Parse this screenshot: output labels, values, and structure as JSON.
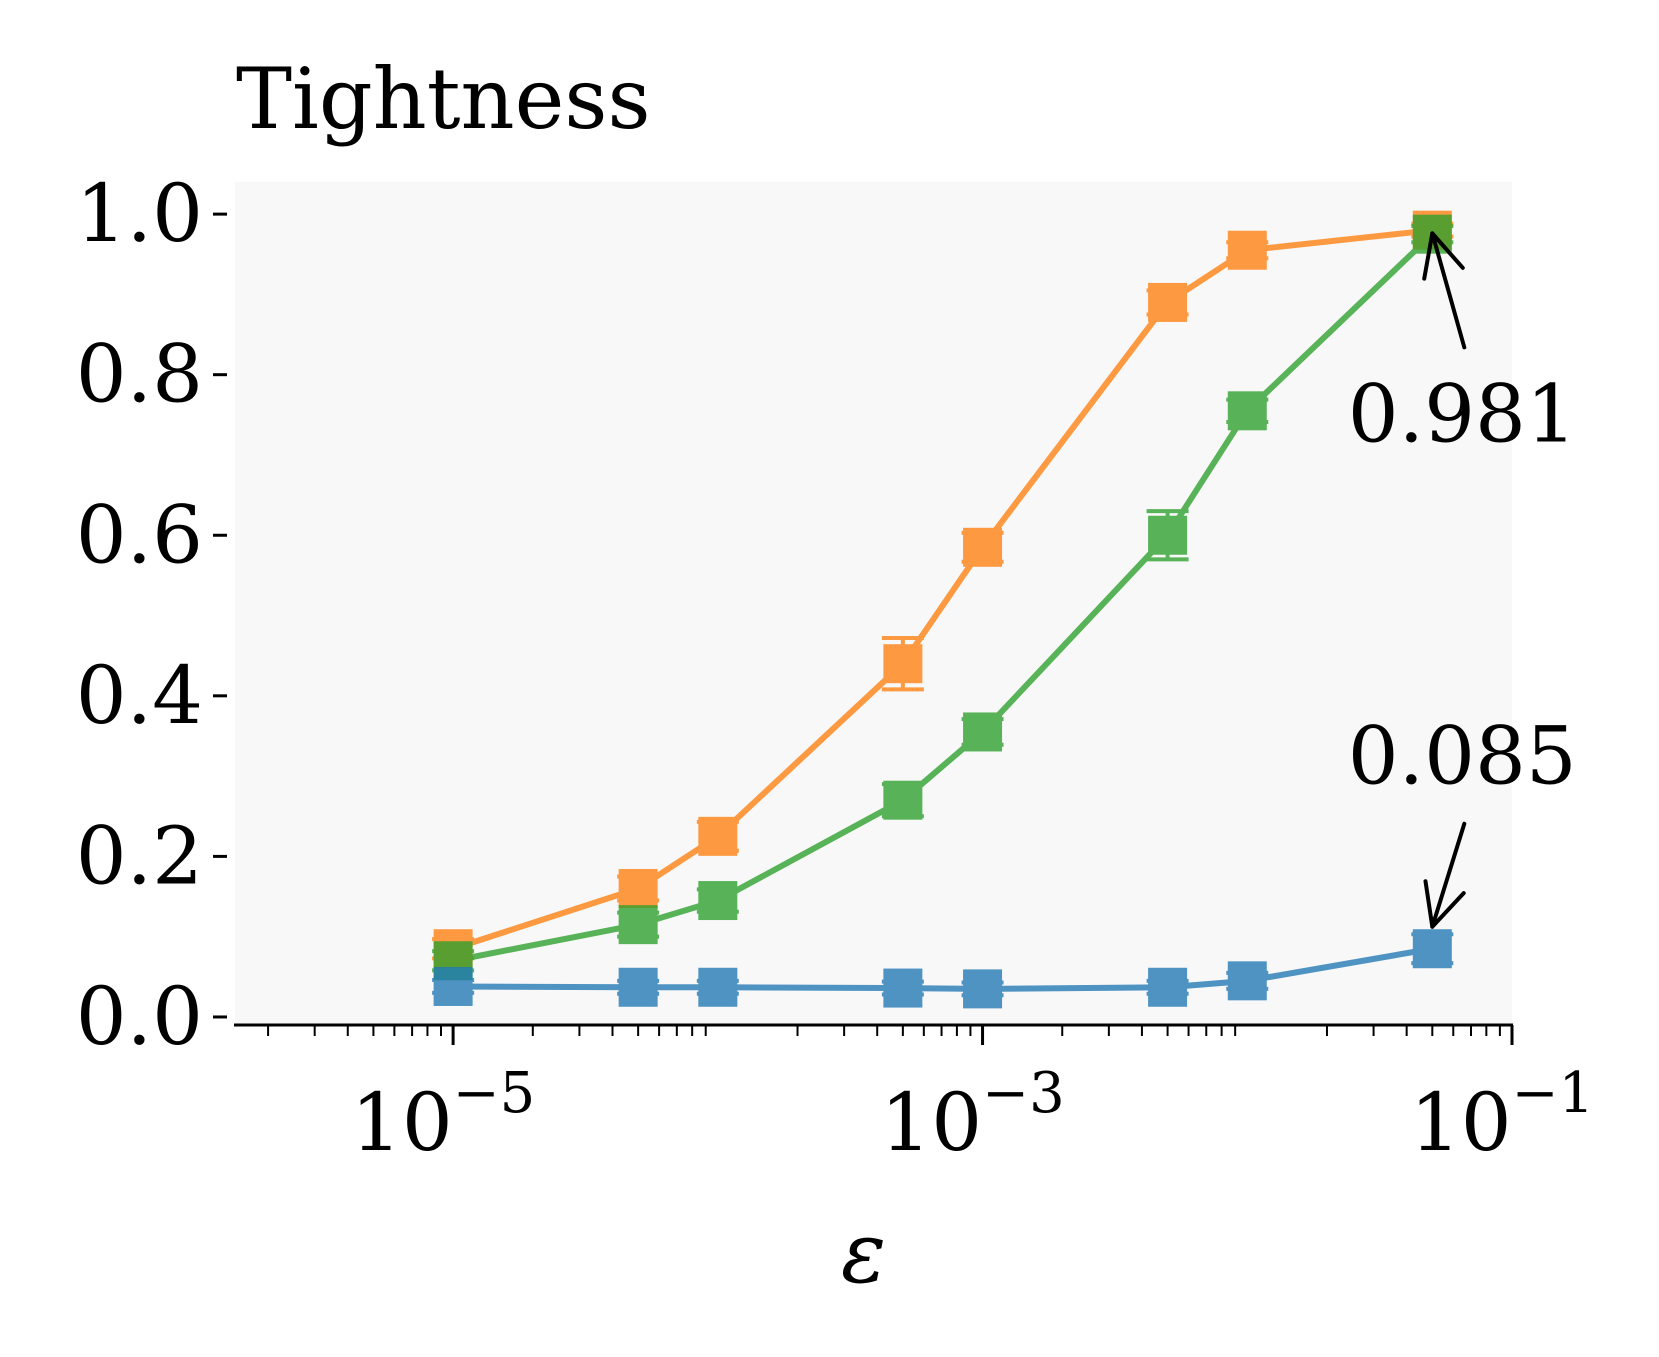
{
  "chart_data": {
    "type": "line",
    "title": "Tightness",
    "xlabel": "ε",
    "ylabel": "",
    "xscale": "log",
    "xlim": [
      1.5e-06,
      0.1
    ],
    "ylim": [
      -0.01,
      1.04
    ],
    "grid": false,
    "legend": "none",
    "background": "#f8f8f8",
    "yticks": [
      {
        "value": 0.0,
        "label": "0.0"
      },
      {
        "value": 0.2,
        "label": "0.2"
      },
      {
        "value": 0.4,
        "label": "0.4"
      },
      {
        "value": 0.6,
        "label": "0.6"
      },
      {
        "value": 0.8,
        "label": "0.8"
      },
      {
        "value": 1.0,
        "label": "1.0"
      }
    ],
    "xticks": [
      {
        "value": 1e-05,
        "base": "10",
        "exp": "−5"
      },
      {
        "value": 0.001,
        "base": "10",
        "exp": "−3"
      },
      {
        "value": 0.1,
        "base": "10",
        "exp": "−1"
      }
    ],
    "series": [
      {
        "color": "#ff7f0e",
        "x": [
          1e-05,
          5e-05,
          0.0001,
          0.0005,
          0.001,
          0.005,
          0.01,
          0.05
        ],
        "y": [
          0.085,
          0.16,
          0.225,
          0.44,
          0.585,
          0.89,
          0.955,
          0.98
        ],
        "err": [
          0.012,
          0.015,
          0.018,
          0.032,
          0.018,
          0.015,
          0.01,
          0.008
        ]
      },
      {
        "color": "#2ca02c",
        "x": [
          1e-05,
          5e-05,
          0.0001,
          0.0005,
          0.001,
          0.005,
          0.01,
          0.05
        ],
        "y": [
          0.07,
          0.115,
          0.145,
          0.27,
          0.355,
          0.6,
          0.755,
          0.975
        ],
        "err": [
          0.012,
          0.015,
          0.014,
          0.02,
          0.016,
          0.03,
          0.014,
          0.01
        ]
      },
      {
        "color": "#1f77b4",
        "x": [
          1e-05,
          5e-05,
          0.0001,
          0.0005,
          0.001,
          0.005,
          0.01,
          0.05
        ],
        "y": [
          0.038,
          0.037,
          0.037,
          0.036,
          0.035,
          0.037,
          0.045,
          0.085
        ],
        "err": [
          0.008,
          0.008,
          0.008,
          0.008,
          0.008,
          0.008,
          0.01,
          0.018
        ]
      }
    ],
    "annotations": [
      {
        "text": "0.981",
        "x": 0.05,
        "y": 0.981,
        "direction": "below"
      },
      {
        "text": "0.085",
        "x": 0.05,
        "y": 0.085,
        "direction": "above"
      }
    ]
  }
}
